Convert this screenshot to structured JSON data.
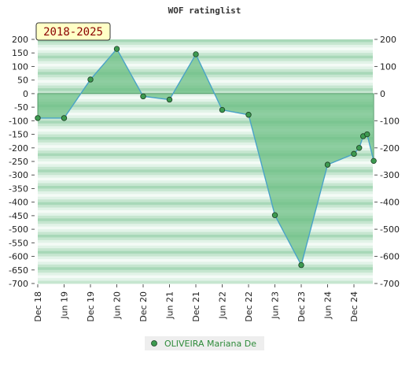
{
  "chart_data": {
    "type": "area",
    "title": "WOF ratinglist",
    "period_label": "2018-2025",
    "xlabel": "",
    "ylabel": "",
    "ylim": [
      -700,
      200
    ],
    "y_ticks": [
      200,
      150,
      100,
      50,
      0,
      -50,
      -100,
      -150,
      -200,
      -250,
      -300,
      -350,
      -400,
      -450,
      -500,
      -550,
      -600,
      -650,
      -700
    ],
    "y_ticks_right": [
      200,
      100,
      0,
      -100,
      -200,
      -300,
      -400,
      -500,
      -600,
      -700
    ],
    "x_ticks": [
      "Dec 18",
      "Jun 19",
      "Dec 19",
      "Jun 20",
      "Dec 20",
      "Jun 21",
      "Dec 21",
      "Jun 22",
      "Dec 22",
      "Jun 23",
      "Dec 23",
      "Jun 24",
      "Dec 24"
    ],
    "legend_position": "bottom",
    "grid": true,
    "series": [
      {
        "name": "OLIVEIRA Mariana De",
        "color": "#4aa3c8",
        "fill": "#6cbf84",
        "marker": "#3d9a50",
        "points": [
          {
            "x": 0,
            "y": -90
          },
          {
            "x": 1,
            "y": -90
          },
          {
            "x": 2,
            "y": 52
          },
          {
            "x": 3,
            "y": 165
          },
          {
            "x": 4,
            "y": -10
          },
          {
            "x": 5,
            "y": -22
          },
          {
            "x": 6,
            "y": 145
          },
          {
            "x": 7,
            "y": -60
          },
          {
            "x": 8,
            "y": -78
          },
          {
            "x": 9,
            "y": -448
          },
          {
            "x": 10,
            "y": -632
          },
          {
            "x": 11,
            "y": -262
          },
          {
            "x": 12,
            "y": -222
          },
          {
            "x": 12.2,
            "y": -200
          },
          {
            "x": 12.35,
            "y": -157
          },
          {
            "x": 12.5,
            "y": -150
          },
          {
            "x": 12.75,
            "y": -248
          }
        ]
      }
    ]
  }
}
